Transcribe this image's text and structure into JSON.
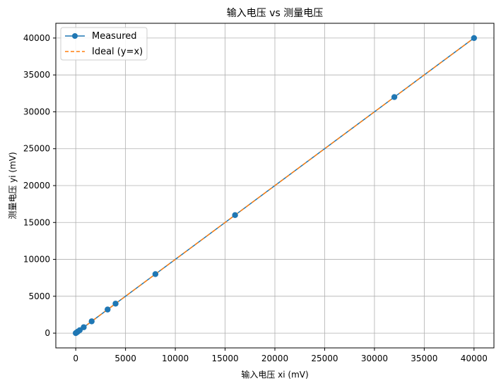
{
  "chart_data": {
    "type": "line",
    "title": "输入电压 vs 测量电压",
    "xlabel": "输入电压 xi (mV)",
    "ylabel": "测量电压 yi (mV)",
    "xlim": [
      -2000,
      42000
    ],
    "ylim": [
      -2000,
      42000
    ],
    "xticks": [
      0,
      5000,
      10000,
      15000,
      20000,
      25000,
      30000,
      35000,
      40000
    ],
    "yticks": [
      0,
      5000,
      10000,
      15000,
      20000,
      25000,
      30000,
      35000,
      40000
    ],
    "xtick_labels": [
      "0",
      "5000",
      "10000",
      "15000",
      "20000",
      "25000",
      "30000",
      "35000",
      "40000"
    ],
    "ytick_labels": [
      "0",
      "5000",
      "10000",
      "15000",
      "20000",
      "25000",
      "30000",
      "35000",
      "40000"
    ],
    "grid": true,
    "legend_position": "top-left",
    "series": [
      {
        "name": "Measured",
        "color": "#1f77b4",
        "style": "solid",
        "marker": "circle",
        "x": [
          0,
          100,
          200,
          400,
          800,
          1600,
          3200,
          4000,
          8000,
          16000,
          32000,
          40000
        ],
        "y": [
          0,
          100,
          200,
          400,
          800,
          1600,
          3200,
          4000,
          8000,
          16000,
          32000,
          40000
        ]
      },
      {
        "name": "Ideal (y=x)",
        "color": "#ff7f0e",
        "style": "dashed",
        "marker": "none",
        "x": [
          0,
          40000
        ],
        "y": [
          0,
          40000
        ]
      }
    ]
  }
}
